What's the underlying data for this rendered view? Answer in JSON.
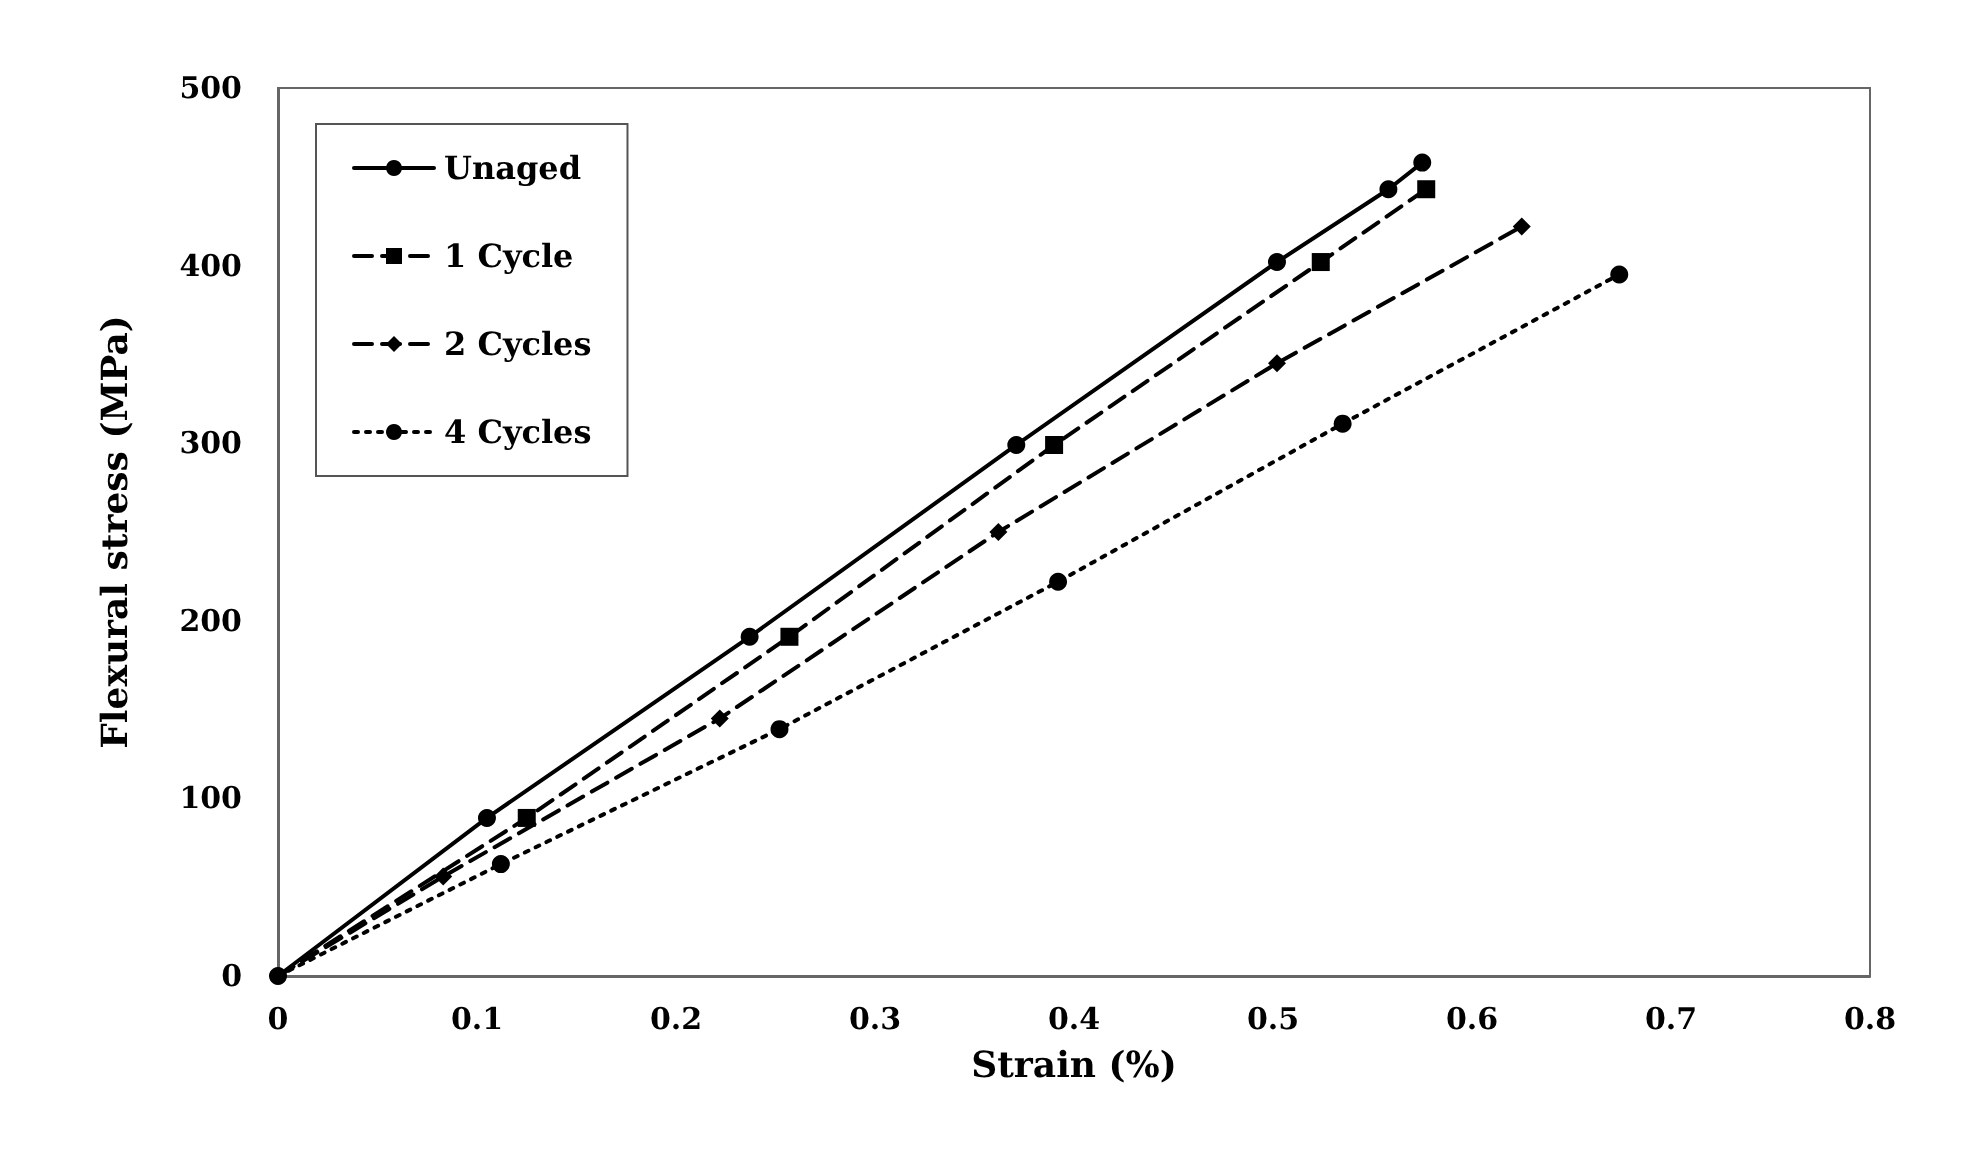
{
  "chart_data": {
    "type": "line",
    "xlabel": "Strain (%)",
    "ylabel": "Flexural stress (MPa)",
    "xlim": [
      0,
      0.8
    ],
    "xticks": [
      0,
      0.1,
      0.2,
      0.3,
      0.4,
      0.5,
      0.6,
      0.7,
      0.8
    ],
    "ylim": [
      0,
      500
    ],
    "yticks": [
      0,
      100,
      200,
      300,
      400,
      500
    ],
    "grid": false,
    "legend": "top left",
    "series": [
      {
        "name": "Unaged",
        "color": "#000000",
        "marker": "circle",
        "line_style": "solid",
        "x": [
          0,
          0.105,
          0.237,
          0.371,
          0.502,
          0.558,
          0.575
        ],
        "values": [
          0,
          89,
          191,
          299,
          402,
          443,
          458
        ]
      },
      {
        "name": "1 Cycle",
        "color": "#000000",
        "marker": "square",
        "line_style": "dashed",
        "x": [
          0,
          0.125,
          0.257,
          0.39,
          0.524,
          0.577
        ],
        "values": [
          0,
          89,
          191,
          299,
          402,
          443
        ]
      },
      {
        "name": "2 Cycles",
        "color": "#000000",
        "marker": "diamond",
        "line_style": "dashed",
        "x": [
          0,
          0.083,
          0.222,
          0.362,
          0.502,
          0.625
        ],
        "values": [
          0,
          56,
          145,
          250,
          345,
          422
        ]
      },
      {
        "name": "4 Cycles",
        "color": "#000000",
        "marker": "circle",
        "line_style": "dotted",
        "x": [
          0,
          0.112,
          0.252,
          0.392,
          0.535,
          0.674
        ],
        "values": [
          0,
          63,
          139,
          222,
          311,
          395
        ]
      }
    ]
  }
}
